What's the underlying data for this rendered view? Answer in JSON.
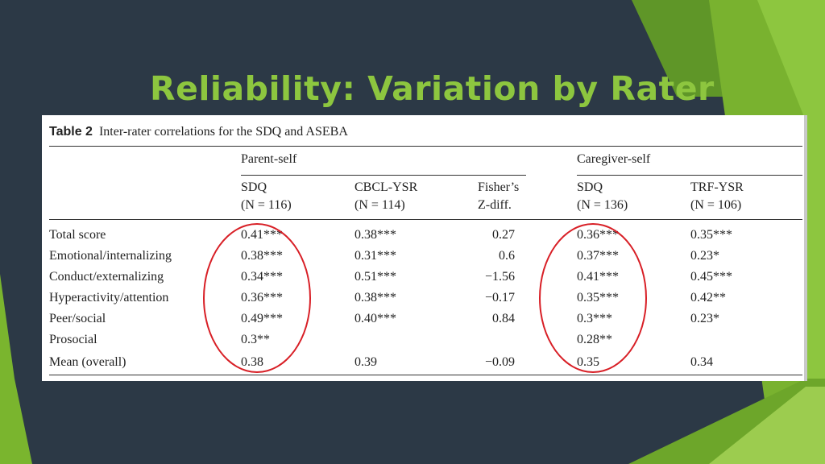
{
  "slide": {
    "title": "Reliability: Variation by Rater",
    "colors": {
      "background": "#2c3946",
      "title": "#8dc63f",
      "accent_green": "#7ab52e",
      "highlight_circle": "#d81f26"
    }
  },
  "table": {
    "caption_label": "Table 2",
    "caption_text": "Inter-rater correlations for the SDQ and ASEBA",
    "groups": [
      "Parent-self",
      "Caregiver-self"
    ],
    "columns": [
      {
        "line1": "SDQ",
        "line2": "(N = 116)"
      },
      {
        "line1": "CBCL-YSR",
        "line2": "(N = 114)"
      },
      {
        "line1": "Fisher’s",
        "line2": "Z-diff."
      },
      {
        "line1": "SDQ",
        "line2": "(N = 136)"
      },
      {
        "line1": "TRF-YSR",
        "line2": "(N = 106)"
      }
    ],
    "rows": [
      {
        "label": "Total score",
        "cells": [
          "0.41***",
          "0.38***",
          "0.27",
          "0.36***",
          "0.35***"
        ]
      },
      {
        "label": "Emotional/internalizing",
        "cells": [
          "0.38***",
          "0.31***",
          "0.6",
          "0.37***",
          "0.23*"
        ]
      },
      {
        "label": "Conduct/externalizing",
        "cells": [
          "0.34***",
          "0.51***",
          "−1.56",
          "0.41***",
          "0.45***"
        ]
      },
      {
        "label": "Hyperactivity/attention",
        "cells": [
          "0.36***",
          "0.38***",
          "−0.17",
          "0.35***",
          "0.42**"
        ]
      },
      {
        "label": "Peer/social",
        "cells": [
          "0.49***",
          "0.40***",
          "0.84",
          "0.3***",
          "0.23*"
        ]
      },
      {
        "label": "Prosocial",
        "cells": [
          "0.3**",
          "",
          "",
          "0.28**",
          ""
        ]
      },
      {
        "label": "Mean (overall)",
        "cells": [
          "0.38",
          "0.39",
          "−0.09",
          "0.35",
          "0.34"
        ]
      }
    ]
  }
}
